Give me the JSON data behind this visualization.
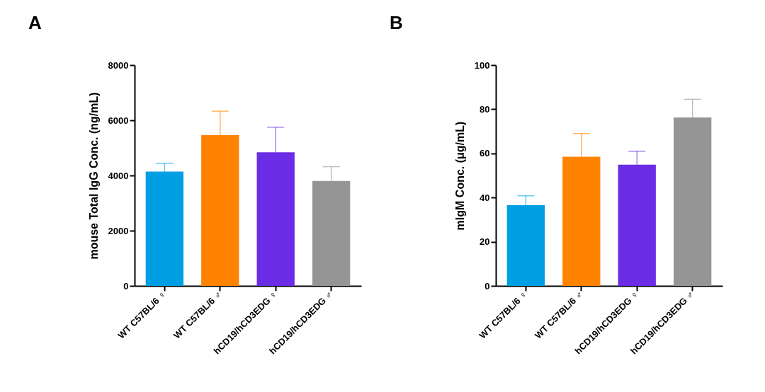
{
  "chart_data": [
    {
      "type": "bar",
      "title": "A",
      "ylabel": "mouse Total IgG Conc. (ng/mL)",
      "categories": [
        "WT C57BL/6 ♀",
        "WT C57BL/6 ♂",
        "hCD19/hCD3EDG ♀",
        "hCD19/hCD3EDG ♂"
      ],
      "values": [
        4140,
        5460,
        4840,
        3800
      ],
      "errors": [
        [
          4140,
          4440
        ],
        [
          5460,
          6330
        ],
        [
          4840,
          5750
        ],
        [
          3800,
          4320
        ]
      ],
      "colors": [
        "#009fe3",
        "#ff8300",
        "#6a2ce4",
        "#959595"
      ],
      "ylim": [
        0,
        8000
      ],
      "yticks": [
        0,
        2000,
        4000,
        6000,
        8000
      ]
    },
    {
      "type": "bar",
      "title": "B",
      "ylabel": "mIgM Conc. (μg/mL)",
      "categories": [
        "WT C57BL/6 ♀",
        "WT C57BL/6 ♂",
        "hCD19/hCD3EDG ♀",
        "hCD19/hCD3EDG ♂"
      ],
      "values": [
        36.5,
        58.5,
        54.9,
        76.3
      ],
      "errors": [
        [
          36.5,
          40.8
        ],
        [
          58.5,
          69.0
        ],
        [
          54.9,
          61.0
        ],
        [
          76.3,
          84.5
        ]
      ],
      "colors": [
        "#009fe3",
        "#ff8300",
        "#6a2ce4",
        "#959595"
      ],
      "ylim": [
        0,
        100
      ],
      "yticks": [
        0,
        20,
        40,
        60,
        80,
        100
      ]
    }
  ]
}
